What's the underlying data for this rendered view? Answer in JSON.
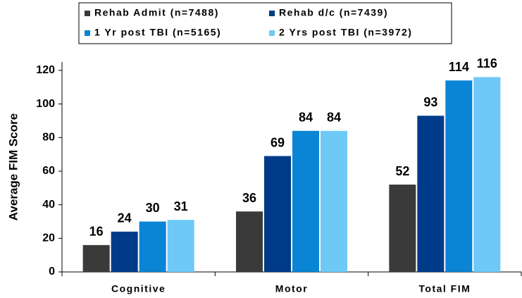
{
  "chart_data": {
    "type": "bar",
    "y_label": "Average FIM Score",
    "categories": [
      "Cognitive",
      "Motor",
      "Total FIM"
    ],
    "series": [
      {
        "name": "Rehab Admit (n=7488)",
        "color": "#3a3a3a",
        "values": [
          16,
          36,
          52
        ]
      },
      {
        "name": "Rehab d/c (n=7439)",
        "color": "#003b8a",
        "values": [
          24,
          69,
          93
        ]
      },
      {
        "name": "1 Yr post TBI (n=5165)",
        "color": "#0a84d4",
        "values": [
          30,
          84,
          114
        ]
      },
      {
        "name": "2 Yrs post TBI (n=3972)",
        "color": "#6ec9f7",
        "values": [
          31,
          84,
          116
        ]
      }
    ],
    "ylim": [
      0,
      125
    ],
    "yticks": [
      0,
      20,
      40,
      60,
      80,
      100,
      120
    ],
    "grid": false,
    "legend": "top"
  }
}
